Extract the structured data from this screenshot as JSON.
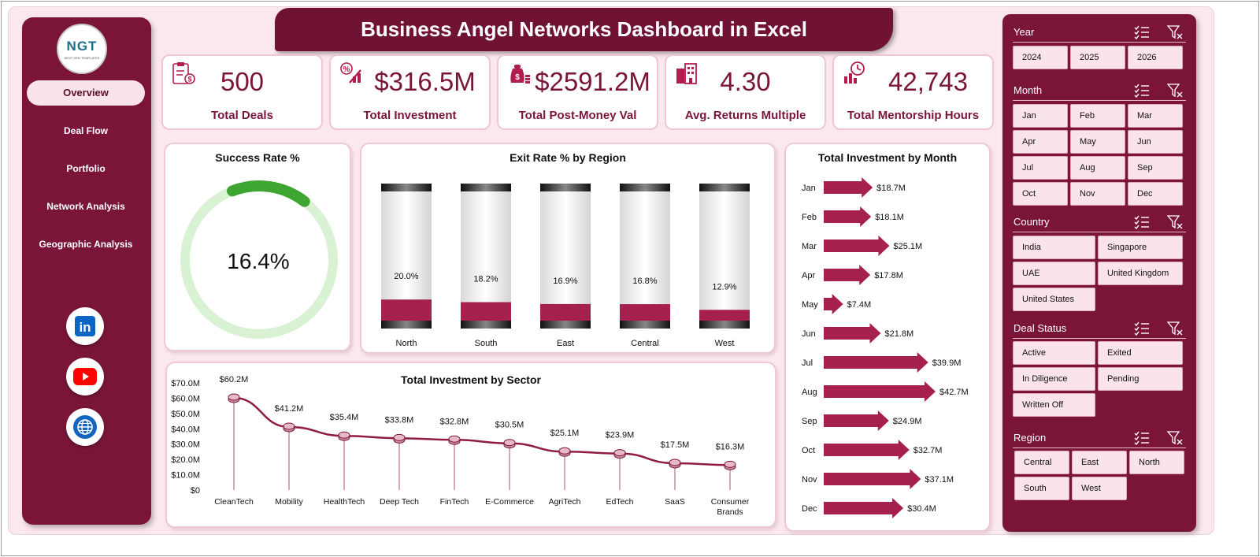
{
  "title": "Business Angel Networks Dashboard in Excel",
  "logo": {
    "text": "NGT",
    "subtext": "NEXT GEN TEMPLATES"
  },
  "nav": {
    "items": [
      {
        "label": "Overview",
        "active": true
      },
      {
        "label": "Deal Flow",
        "active": false
      },
      {
        "label": "Portfolio",
        "active": false
      },
      {
        "label": "Network Analysis",
        "active": false
      },
      {
        "label": "Geographic Analysis",
        "active": false
      }
    ]
  },
  "social": [
    {
      "icon": "linkedin-icon",
      "text": "in"
    },
    {
      "icon": "youtube-icon",
      "text": ""
    },
    {
      "icon": "globe-icon",
      "text": ""
    }
  ],
  "kpis": [
    {
      "value": "500",
      "label": "Total Deals",
      "icon": "clipboard-money-icon"
    },
    {
      "value": "$316.5M",
      "label": "Total Investment",
      "icon": "investment-icon"
    },
    {
      "value": "$2591.2M",
      "label": "Total Post-Money Val",
      "icon": "money-bag-icon"
    },
    {
      "value": "4.30",
      "label": "Avg. Returns Multiple",
      "icon": "returns-building-icon"
    },
    {
      "value": "42,743",
      "label": "Total Mentorship Hours",
      "icon": "mentor-clock-icon"
    }
  ],
  "success": {
    "title": "Success Rate %",
    "value_text": "16.4%",
    "value": 16.4,
    "colors": {
      "ring": "#d9f2d4",
      "fill": "#3fa531"
    }
  },
  "exit_chart": {
    "title": "Exit Rate % by Region",
    "chart_data": {
      "type": "bar",
      "categories": [
        "North",
        "South",
        "East",
        "Central",
        "West"
      ],
      "values": [
        20.0,
        18.2,
        16.9,
        16.8,
        12.9
      ],
      "labels": [
        "20.0%",
        "18.2%",
        "16.9%",
        "16.8%",
        "12.9%"
      ],
      "ylim": [
        0,
        100
      ]
    }
  },
  "month_chart": {
    "title": "Total Investment by Month",
    "chart_data": {
      "type": "bar",
      "categories": [
        "Jan",
        "Feb",
        "Mar",
        "Apr",
        "May",
        "Jun",
        "Jul",
        "Aug",
        "Sep",
        "Oct",
        "Nov",
        "Dec"
      ],
      "values": [
        18.7,
        18.1,
        25.1,
        17.8,
        7.4,
        21.8,
        39.9,
        42.7,
        24.9,
        32.7,
        37.1,
        30.4
      ],
      "labels": [
        "$18.7M",
        "$18.1M",
        "$25.1M",
        "$17.8M",
        "$7.4M",
        "$21.8M",
        "$39.9M",
        "$42.7M",
        "$24.9M",
        "$32.7M",
        "$37.1M",
        "$30.4M"
      ]
    }
  },
  "sector_chart": {
    "title": "Total Investment by Sector",
    "chart_data": {
      "type": "line",
      "categories": [
        "CleanTech",
        "Mobility",
        "HealthTech",
        "Deep Tech",
        "FinTech",
        "E-Commerce",
        "AgriTech",
        "EdTech",
        "SaaS",
        "Consumer Brands"
      ],
      "category_lines": [
        [
          "CleanTech"
        ],
        [
          "Mobility"
        ],
        [
          "HealthTech"
        ],
        [
          "Deep Tech"
        ],
        [
          "FinTech"
        ],
        [
          "E-Commerce"
        ],
        [
          "AgriTech"
        ],
        [
          "EdTech"
        ],
        [
          "SaaS"
        ],
        [
          "Consumer",
          "Brands"
        ]
      ],
      "values": [
        60.2,
        41.2,
        35.4,
        33.8,
        32.8,
        30.5,
        25.1,
        23.9,
        17.5,
        16.3
      ],
      "labels": [
        "$60.2M",
        "$41.2M",
        "$35.4M",
        "$33.8M",
        "$32.8M",
        "$30.5M",
        "$25.1M",
        "$23.9M",
        "$17.5M",
        "$16.3M"
      ],
      "yticks": [
        "$0",
        "$10.0M",
        "$20.0M",
        "$30.0M",
        "$40.0M",
        "$50.0M",
        "$60.0M",
        "$70.0M"
      ],
      "ylim": [
        0,
        70
      ]
    }
  },
  "slicers": [
    {
      "title": "Year",
      "cols": 3,
      "items": [
        "2024",
        "2025",
        "2026"
      ]
    },
    {
      "title": "Month",
      "cols": 3,
      "items": [
        "Jan",
        "Feb",
        "Mar",
        "Apr",
        "May",
        "Jun",
        "Jul",
        "Aug",
        "Sep",
        "Oct",
        "Nov",
        "Dec"
      ]
    },
    {
      "title": "Country",
      "cols": 2,
      "items": [
        "India",
        "Singapore",
        "UAE",
        "United Kingdom",
        "United States"
      ]
    },
    {
      "title": "Deal Status",
      "cols": 2,
      "items": [
        "Active",
        "Exited",
        "In Diligence",
        "Pending",
        "Written Off"
      ]
    },
    {
      "title": "Region",
      "cols": 3,
      "items": [
        "Central",
        "East",
        "North",
        "South",
        "West"
      ]
    }
  ],
  "colors": {
    "accent": "#7a1539",
    "bar": "#a5204f",
    "light": "#fbe3ea"
  }
}
